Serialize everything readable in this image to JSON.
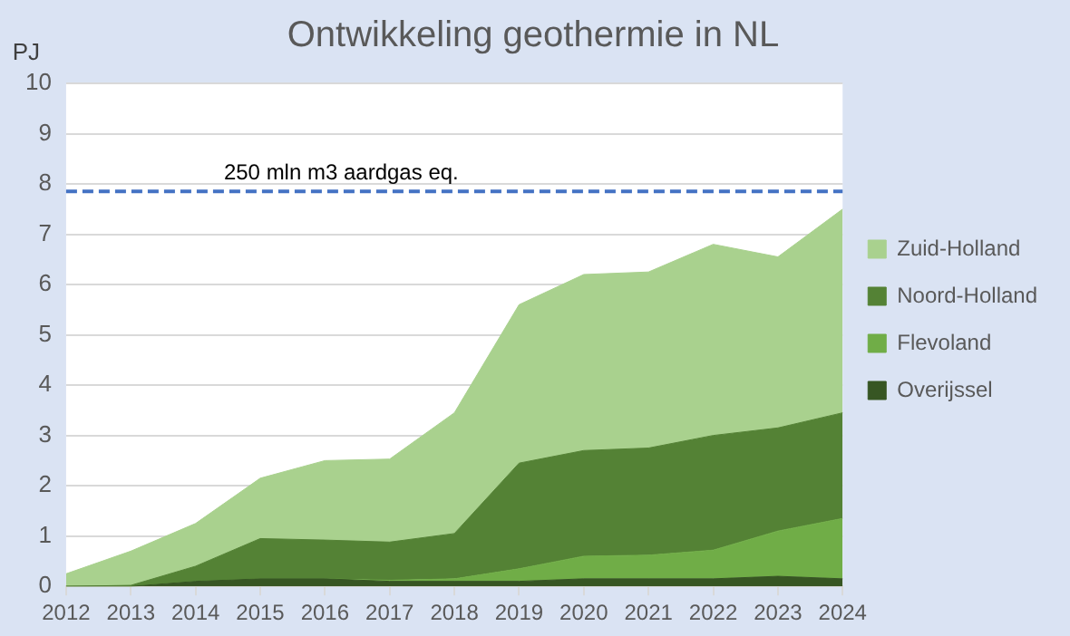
{
  "chart_data": {
    "type": "area",
    "title": "Ontwikkeling geothermie in NL",
    "ylabel": "PJ",
    "categories": [
      "2012",
      "2013",
      "2014",
      "2015",
      "2016",
      "2017",
      "2018",
      "2019",
      "2020",
      "2021",
      "2022",
      "2023",
      "2024"
    ],
    "stacked": true,
    "series": [
      {
        "name": "Overijssel",
        "color": "#375623",
        "values": [
          0,
          0,
          0.1,
          0.15,
          0.15,
          0.1,
          0.1,
          0.1,
          0.15,
          0.15,
          0.15,
          0.2,
          0.15
        ]
      },
      {
        "name": "Flevoland",
        "color": "#70ad47",
        "values": [
          0,
          0,
          0,
          0,
          0,
          0.02,
          0.05,
          0.25,
          0.45,
          0.47,
          0.57,
          0.9,
          1.2
        ]
      },
      {
        "name": "Noord-Holland",
        "color": "#548235",
        "values": [
          0,
          0.02,
          0.3,
          0.8,
          0.77,
          0.76,
          0.9,
          2.1,
          2.1,
          2.13,
          2.28,
          2.05,
          2.1
        ]
      },
      {
        "name": "Zuid-Holland",
        "color": "#a9d18e",
        "values": [
          0.25,
          0.68,
          0.85,
          1.2,
          1.58,
          1.65,
          2.4,
          3.15,
          3.5,
          3.5,
          3.8,
          3.4,
          4.05
        ]
      }
    ],
    "ylim": [
      0,
      10
    ],
    "yticks": [
      0,
      1,
      2,
      3,
      4,
      5,
      6,
      7,
      8,
      9,
      10
    ],
    "ref_lines": [
      {
        "axis": "y",
        "value": 7.85,
        "label": "250 mln m3 aardgas eq.",
        "color": "#4472c4",
        "line_style": "dashed"
      }
    ],
    "grid": "y",
    "legend": "right",
    "marker": "none"
  }
}
